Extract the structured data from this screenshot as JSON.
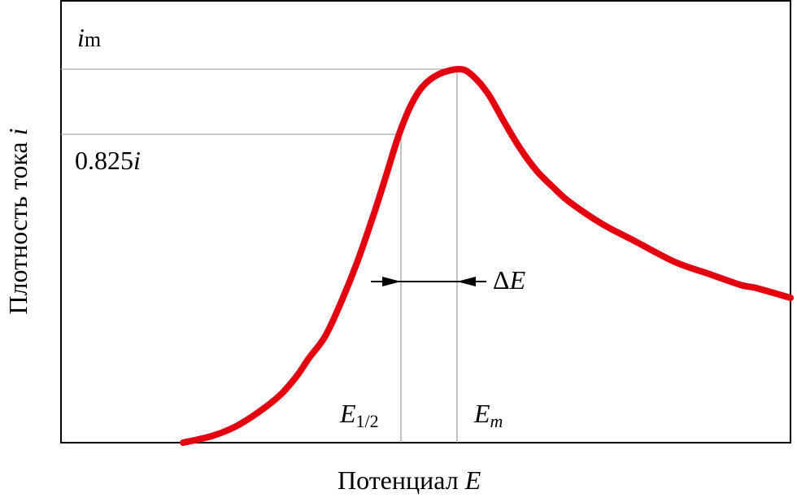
{
  "chart_data": {
    "type": "line",
    "title": "",
    "xlabel": "Потенциал",
    "xlabel_symbol": "E",
    "ylabel": "Плотность тока",
    "ylabel_symbol": "i",
    "grid": false,
    "curve_color": "#e3000f",
    "annotations": {
      "peak_current_symbol": "i",
      "peak_current_sub": "m",
      "fraction_value": "0.825",
      "fraction_symbol": "i",
      "half_potential_symbol": "E",
      "half_potential_sub": "1/2",
      "peak_potential_symbol": "E",
      "peak_potential_sub": "m",
      "delta_label": "Δ",
      "delta_symbol": "E"
    }
  }
}
